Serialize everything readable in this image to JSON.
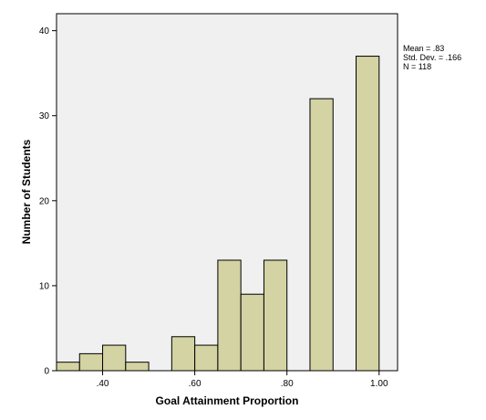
{
  "chart_data": {
    "type": "bar",
    "xlabel": "Goal Attainment Proportion",
    "ylabel": "Number of Students",
    "xlim": [
      0.3,
      1.04
    ],
    "ylim": [
      0,
      42
    ],
    "x_ticks": [
      {
        "value": 0.4,
        "label": ".40"
      },
      {
        "value": 0.6,
        "label": ".60"
      },
      {
        "value": 0.8,
        "label": ".80"
      },
      {
        "value": 1.0,
        "label": "1.00"
      }
    ],
    "y_ticks": [
      {
        "value": 0,
        "label": "0"
      },
      {
        "value": 10,
        "label": "10"
      },
      {
        "value": 20,
        "label": "20"
      },
      {
        "value": 30,
        "label": "30"
      },
      {
        "value": 40,
        "label": "40"
      }
    ],
    "bin_width": 0.05,
    "bins": [
      {
        "start": 0.3,
        "count": 1
      },
      {
        "start": 0.35,
        "count": 2
      },
      {
        "start": 0.4,
        "count": 3
      },
      {
        "start": 0.45,
        "count": 1
      },
      {
        "start": 0.5,
        "count": 0
      },
      {
        "start": 0.55,
        "count": 4
      },
      {
        "start": 0.6,
        "count": 3
      },
      {
        "start": 0.65,
        "count": 13
      },
      {
        "start": 0.7,
        "count": 9
      },
      {
        "start": 0.75,
        "count": 13
      },
      {
        "start": 0.8,
        "count": 0
      },
      {
        "start": 0.85,
        "count": 32
      },
      {
        "start": 0.9,
        "count": 0
      },
      {
        "start": 0.95,
        "count": 37
      }
    ],
    "stats": {
      "mean": "Mean = .83",
      "std_dev": "Std. Dev. = .166",
      "n": "N = 118"
    },
    "grid": false,
    "plot_background": "#f0f0f0",
    "bar_color": "#d3d3a3",
    "bar_edge_color": "#000000"
  }
}
